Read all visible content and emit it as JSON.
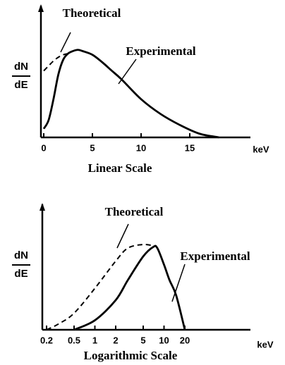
{
  "chart_data": [
    {
      "type": "line",
      "caption": "Linear Scale",
      "xlabel": "keV",
      "ylabel_top": "dN",
      "ylabel_bottom": "dE",
      "xscale": "linear",
      "xlim": [
        0,
        15
      ],
      "xticks": [
        0,
        5,
        10,
        15
      ],
      "ylim": [
        0,
        1
      ],
      "series": [
        {
          "name": "Theoretical",
          "color": "#000000",
          "dashed": true,
          "x": [
            0,
            0.5,
            1,
            1.5,
            2,
            2.5
          ],
          "values": [
            0.54,
            0.58,
            0.62,
            0.65,
            0.67,
            0.68
          ]
        },
        {
          "name": "Experimental",
          "color": "#000000",
          "dashed": false,
          "x": [
            0,
            0.5,
            1,
            1.5,
            2,
            2.5,
            3,
            3.5,
            4,
            5,
            6,
            7,
            8,
            10,
            12,
            14,
            16,
            18
          ],
          "values": [
            0.07,
            0.14,
            0.31,
            0.51,
            0.63,
            0.68,
            0.7,
            0.71,
            0.7,
            0.67,
            0.61,
            0.54,
            0.47,
            0.31,
            0.19,
            0.1,
            0.03,
            0
          ]
        }
      ]
    },
    {
      "type": "line",
      "caption": "Logarithmic Scale",
      "xlabel": "keV",
      "ylabel_top": "dN",
      "ylabel_bottom": "dE",
      "xscale": "log",
      "xlim": [
        0.2,
        20
      ],
      "xticks": [
        0.2,
        0.5,
        1,
        2,
        5,
        10,
        20
      ],
      "ylim": [
        0,
        1
      ],
      "series": [
        {
          "name": "Theoretical",
          "color": "#000000",
          "dashed": true,
          "x": [
            0.2,
            0.3,
            0.5,
            1,
            2,
            3,
            5,
            7
          ],
          "values": [
            0,
            0.05,
            0.14,
            0.35,
            0.58,
            0.69,
            0.72,
            0.71
          ]
        },
        {
          "name": "Experimental",
          "color": "#000000",
          "dashed": false,
          "x": [
            0.5,
            1,
            2,
            3,
            5,
            7,
            8,
            10,
            12,
            15,
            20
          ],
          "values": [
            0,
            0.08,
            0.25,
            0.42,
            0.62,
            0.7,
            0.69,
            0.55,
            0.42,
            0.29,
            0
          ]
        }
      ]
    }
  ]
}
